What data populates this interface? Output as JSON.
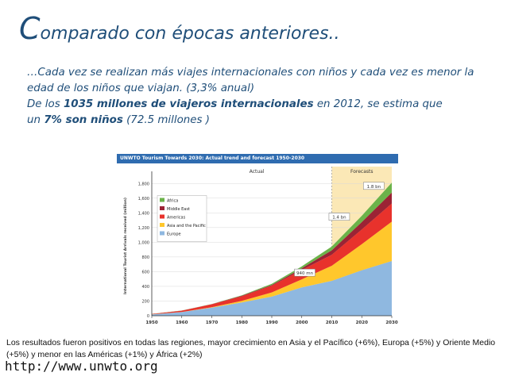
{
  "slide": {
    "title_initial": "C",
    "title_rest": "omparado con épocas anteriores..",
    "para1": "…Cada vez se realizan más viajes internacionales con niños y cada vez es menor la edad de los niños que viajan. (3,3% anual)",
    "para2_a": "De los ",
    "para2_b": "1035 millones de viajeros internacionales",
    "para2_c": " en 2012, se estima que",
    "para2_d": "un ",
    "para2_e": "7% son niños",
    "para2_f": " (72.5 millones )",
    "footnote": "Los resultados fueron positivos en todas las regiones, mayor crecimiento en Asia y el Pacífico (+6%), Europa (+5%) y Oriente Medio (+5%) y menor en las Américas (+1%) y África (+2%)",
    "url": "http://www.unwto.org"
  },
  "chart_data": {
    "type": "area",
    "title": "UNWTO Tourism Towards 2030: Actual trend and forecast 1950-2030",
    "ylabel": "International Tourist Arrivals received (million)",
    "xlabel": "",
    "x_ticks": [
      "1950",
      "1960",
      "1970",
      "1980",
      "1990",
      "2000",
      "2010",
      "2020",
      "2030"
    ],
    "y_ticks": [
      "0",
      "200",
      "400",
      "600",
      "800",
      "1,000",
      "1,200",
      "1,400",
      "1,600",
      "1,800"
    ],
    "ylim": [
      0,
      1900
    ],
    "xlim": [
      1950,
      2030
    ],
    "region_labels": {
      "actual": "Actual",
      "forecast": "Forecasts"
    },
    "annotations": [
      "940 mn",
      "1.4 bn",
      "1.8 bn"
    ],
    "colors": {
      "Europe": "#8fb8e0",
      "Asia and the Pacific": "#ffc72c",
      "Americas": "#e8322c",
      "Middle East": "#9b2335",
      "Africa": "#6bb34a",
      "forecast_bg": "#fbe8b6",
      "header_bg": "#2f6cb0"
    },
    "legend_position": "top-left",
    "x": [
      1950,
      1960,
      1970,
      1980,
      1990,
      2000,
      2010,
      2020,
      2030
    ],
    "series": [
      {
        "name": "Europe",
        "values": [
          17,
          50,
          110,
          180,
          260,
          385,
          475,
          620,
          745
        ]
      },
      {
        "name": "Asia and the Pacific",
        "values": [
          1,
          2,
          6,
          23,
          57,
          110,
          205,
          355,
          535
        ]
      },
      {
        "name": "Americas",
        "values": [
          7,
          17,
          40,
          62,
          92,
          128,
          150,
          199,
          248
        ]
      },
      {
        "name": "Middle East",
        "values": [
          0.2,
          1,
          2,
          7,
          10,
          24,
          61,
          101,
          149
        ]
      },
      {
        "name": "Africa",
        "values": [
          0.5,
          1,
          2,
          7,
          15,
          26,
          50,
          85,
          134
        ]
      }
    ]
  }
}
